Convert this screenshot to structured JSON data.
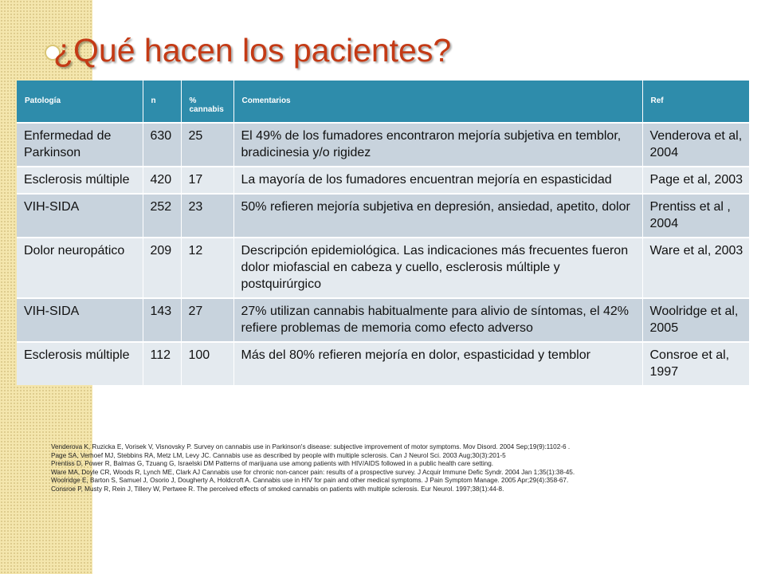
{
  "slide": {
    "title": "¿Qué hacen los pacientes?"
  },
  "table": {
    "headers": [
      "Patología",
      "n",
      "% cannabis",
      "Comentarios",
      "Ref"
    ],
    "rows": [
      [
        "Enfermedad de Parkinson",
        "630",
        "25",
        "El 49% de los fumadores encontraron mejoría subjetiva en temblor, bradicinesia y/o rigidez",
        "Venderova et al, 2004"
      ],
      [
        "Esclerosis múltiple",
        "420",
        "17",
        "La mayoría de los fumadores encuentran mejoría en espasticidad",
        "Page et al, 2003"
      ],
      [
        "VIH-SIDA",
        "252",
        "23",
        "50% refieren mejoría subjetiva en depresión, ansiedad, apetito, dolor",
        "Prentiss et al , 2004"
      ],
      [
        "Dolor neuropático",
        "209",
        "12",
        "Descripción epidemiológica. Las indicaciones más frecuentes fueron dolor miofascial en cabeza y cuello, esclerosis múltiple y postquirúrgico",
        "Ware et al, 2003"
      ],
      [
        "VIH-SIDA",
        "143",
        "27",
        "27% utilizan cannabis habitualmente para alivio de síntomas, el 42% refiere  problemas de memoria como efecto adverso",
        "Woolridge et al, 2005"
      ],
      [
        "Esclerosis múltiple",
        "112",
        "100",
        "Más del 80% refieren mejoría en dolor, espasticidad y temblor",
        "Consroe et al, 1997"
      ]
    ]
  },
  "references": [
    "Venderova K, Ruzicka E, Vorisek V, Visnovsky P. Survey on cannabis use in Parkinson's disease: subjective improvement of motor symptoms. Mov Disord. 2004 Sep;19(9):1102-6 .",
    "Page SA, Verhoef MJ, Stebbins RA, Metz LM, Levy JC. Cannabis use as described by people with multiple sclerosis.  Can J Neurol Sci. 2003 Aug;30(3):201-5",
    "Prentiss D, Power R, Balmas G, Tzuang G, Israelski DM Patterns of marijuana use among patients with HIV/AIDS followed in a public health care setting.",
    "Ware MA, Doyle CR, Woods R, Lynch ME, Clark AJ Cannabis use for chronic non-cancer pain: results of a prospective survey. J Acquir Immune Defic Syndr. 2004 Jan 1;35(1):38-45.",
    "Woolridge E, Barton S, Samuel J, Osorio J, Dougherty A, Holdcroft A. Cannabis use in HIV for pain and other medical symptoms. J Pain Symptom Manage. 2005 Apr;29(4):358-67.",
    "Consroe P, Musty R, Rein J, Tillery W, Pertwee R. The perceived effects of smoked cannabis on patients with multiple sclerosis. Eur Neurol. 1997;38(1):44-8."
  ],
  "colors": {
    "title": "#c43a15",
    "header_bg": "#2e8cab",
    "row_dark": "#c8d3dd",
    "row_light": "#e4eaef",
    "left_band": "#f4e6ad"
  }
}
